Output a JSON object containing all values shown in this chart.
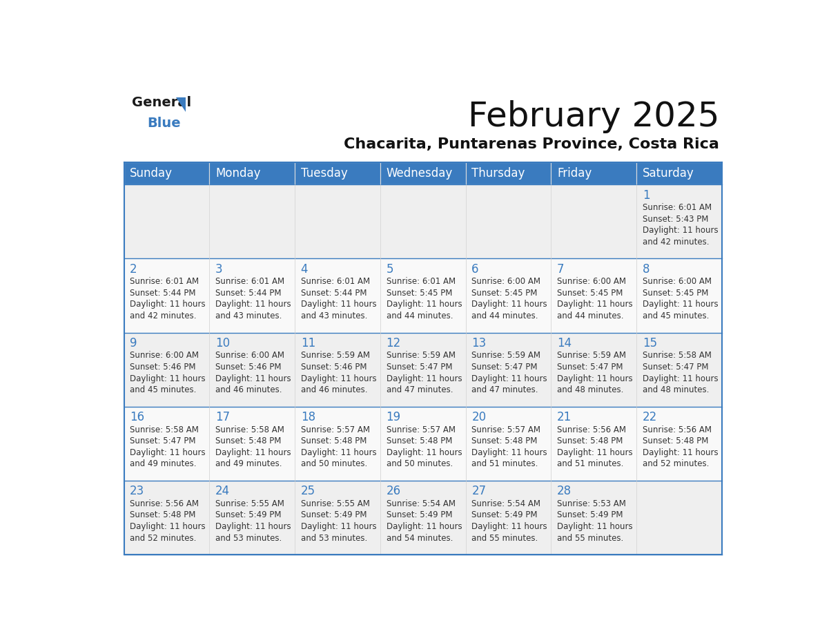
{
  "title": "February 2025",
  "subtitle": "Chacarita, Puntarenas Province, Costa Rica",
  "header_color": "#3a7bbf",
  "header_text_color": "#ffffff",
  "cell_bg_even": "#efefef",
  "cell_bg_odd": "#f9f9f9",
  "day_number_color": "#3a7bbf",
  "info_text_color": "#333333",
  "border_color": "#3a7bbf",
  "separator_color": "#3a7bbf",
  "days_of_week": [
    "Sunday",
    "Monday",
    "Tuesday",
    "Wednesday",
    "Thursday",
    "Friday",
    "Saturday"
  ],
  "weeks": [
    [
      {
        "day": null,
        "sunrise": null,
        "sunset": null,
        "daylight": null
      },
      {
        "day": null,
        "sunrise": null,
        "sunset": null,
        "daylight": null
      },
      {
        "day": null,
        "sunrise": null,
        "sunset": null,
        "daylight": null
      },
      {
        "day": null,
        "sunrise": null,
        "sunset": null,
        "daylight": null
      },
      {
        "day": null,
        "sunrise": null,
        "sunset": null,
        "daylight": null
      },
      {
        "day": null,
        "sunrise": null,
        "sunset": null,
        "daylight": null
      },
      {
        "day": 1,
        "sunrise": "6:01 AM",
        "sunset": "5:43 PM",
        "daylight": "11 hours\nand 42 minutes."
      }
    ],
    [
      {
        "day": 2,
        "sunrise": "6:01 AM",
        "sunset": "5:44 PM",
        "daylight": "11 hours\nand 42 minutes."
      },
      {
        "day": 3,
        "sunrise": "6:01 AM",
        "sunset": "5:44 PM",
        "daylight": "11 hours\nand 43 minutes."
      },
      {
        "day": 4,
        "sunrise": "6:01 AM",
        "sunset": "5:44 PM",
        "daylight": "11 hours\nand 43 minutes."
      },
      {
        "day": 5,
        "sunrise": "6:01 AM",
        "sunset": "5:45 PM",
        "daylight": "11 hours\nand 44 minutes."
      },
      {
        "day": 6,
        "sunrise": "6:00 AM",
        "sunset": "5:45 PM",
        "daylight": "11 hours\nand 44 minutes."
      },
      {
        "day": 7,
        "sunrise": "6:00 AM",
        "sunset": "5:45 PM",
        "daylight": "11 hours\nand 44 minutes."
      },
      {
        "day": 8,
        "sunrise": "6:00 AM",
        "sunset": "5:45 PM",
        "daylight": "11 hours\nand 45 minutes."
      }
    ],
    [
      {
        "day": 9,
        "sunrise": "6:00 AM",
        "sunset": "5:46 PM",
        "daylight": "11 hours\nand 45 minutes."
      },
      {
        "day": 10,
        "sunrise": "6:00 AM",
        "sunset": "5:46 PM",
        "daylight": "11 hours\nand 46 minutes."
      },
      {
        "day": 11,
        "sunrise": "5:59 AM",
        "sunset": "5:46 PM",
        "daylight": "11 hours\nand 46 minutes."
      },
      {
        "day": 12,
        "sunrise": "5:59 AM",
        "sunset": "5:47 PM",
        "daylight": "11 hours\nand 47 minutes."
      },
      {
        "day": 13,
        "sunrise": "5:59 AM",
        "sunset": "5:47 PM",
        "daylight": "11 hours\nand 47 minutes."
      },
      {
        "day": 14,
        "sunrise": "5:59 AM",
        "sunset": "5:47 PM",
        "daylight": "11 hours\nand 48 minutes."
      },
      {
        "day": 15,
        "sunrise": "5:58 AM",
        "sunset": "5:47 PM",
        "daylight": "11 hours\nand 48 minutes."
      }
    ],
    [
      {
        "day": 16,
        "sunrise": "5:58 AM",
        "sunset": "5:47 PM",
        "daylight": "11 hours\nand 49 minutes."
      },
      {
        "day": 17,
        "sunrise": "5:58 AM",
        "sunset": "5:48 PM",
        "daylight": "11 hours\nand 49 minutes."
      },
      {
        "day": 18,
        "sunrise": "5:57 AM",
        "sunset": "5:48 PM",
        "daylight": "11 hours\nand 50 minutes."
      },
      {
        "day": 19,
        "sunrise": "5:57 AM",
        "sunset": "5:48 PM",
        "daylight": "11 hours\nand 50 minutes."
      },
      {
        "day": 20,
        "sunrise": "5:57 AM",
        "sunset": "5:48 PM",
        "daylight": "11 hours\nand 51 minutes."
      },
      {
        "day": 21,
        "sunrise": "5:56 AM",
        "sunset": "5:48 PM",
        "daylight": "11 hours\nand 51 minutes."
      },
      {
        "day": 22,
        "sunrise": "5:56 AM",
        "sunset": "5:48 PM",
        "daylight": "11 hours\nand 52 minutes."
      }
    ],
    [
      {
        "day": 23,
        "sunrise": "5:56 AM",
        "sunset": "5:48 PM",
        "daylight": "11 hours\nand 52 minutes."
      },
      {
        "day": 24,
        "sunrise": "5:55 AM",
        "sunset": "5:49 PM",
        "daylight": "11 hours\nand 53 minutes."
      },
      {
        "day": 25,
        "sunrise": "5:55 AM",
        "sunset": "5:49 PM",
        "daylight": "11 hours\nand 53 minutes."
      },
      {
        "day": 26,
        "sunrise": "5:54 AM",
        "sunset": "5:49 PM",
        "daylight": "11 hours\nand 54 minutes."
      },
      {
        "day": 27,
        "sunrise": "5:54 AM",
        "sunset": "5:49 PM",
        "daylight": "11 hours\nand 55 minutes."
      },
      {
        "day": 28,
        "sunrise": "5:53 AM",
        "sunset": "5:49 PM",
        "daylight": "11 hours\nand 55 minutes."
      },
      {
        "day": null,
        "sunrise": null,
        "sunset": null,
        "daylight": null
      }
    ]
  ],
  "logo_general_color": "#1a1a1a",
  "logo_blue_color": "#3a7bbf",
  "logo_triangle_color": "#3a7bbf",
  "title_fontsize": 36,
  "subtitle_fontsize": 16,
  "header_fontsize": 12,
  "day_num_fontsize": 12,
  "info_fontsize": 8.5
}
